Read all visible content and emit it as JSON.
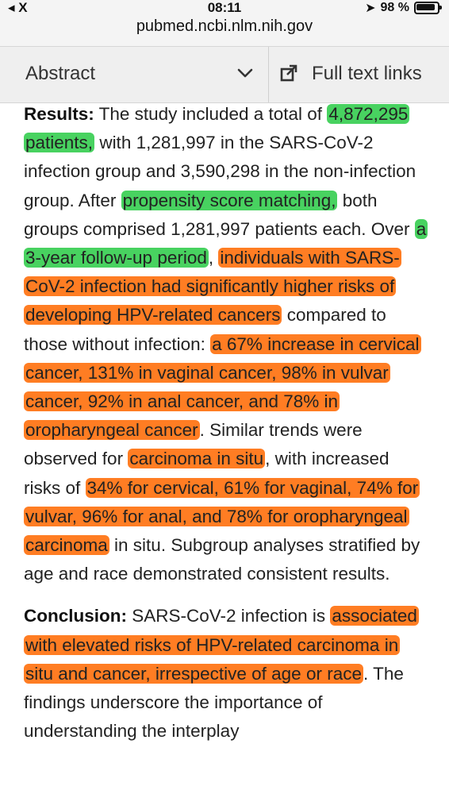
{
  "status_bar": {
    "carrier": "◂ X",
    "time": "08:11",
    "url": "pubmed.ncbi.nlm.nih.gov",
    "battery": "98 %"
  },
  "toolbar": {
    "abstract_label": "Abstract",
    "full_text_label": "Full text links"
  },
  "results": {
    "label": "Results:",
    "segments": [
      " The study included a total of ",
      "4,872,295 patients,",
      " with 1,281,997 in the SARS-CoV-2 infection group and 3,590,298 in the non-infection group. After ",
      "propensity score matching,",
      " both groups comprised 1,281,997 patients each. Over ",
      "a 3-year follow-up period",
      ", ",
      "individuals with SARS-CoV-2 infection had significantly higher risks of developing HPV-related cancers",
      " compared to those without infection: ",
      "a 67% increase in cervical cancer, 131% in vaginal cancer, 98% in vulvar cancer, 92% in anal cancer, and 78% in oropharyngeal cancer",
      ". Similar trends were observed for ",
      "carcinoma in situ",
      ", with increased risks of ",
      "34% for cervical, 61% for vaginal, 74% for vulvar, 96% for anal, and 78% for oropharyngeal carcinoma",
      " in situ. Subgroup analyses stratified by age and race demonstrated consistent results."
    ]
  },
  "conclusion": {
    "label": "Conclusion:",
    "segments": [
      " SARS-CoV-2 infection is ",
      "associated with elevated risks of HPV-related carcinoma in situ and cancer, irrespective of age or race",
      ". The findings underscore the importance of understanding the interplay"
    ]
  },
  "highlight_colors": {
    "green": "#48d260",
    "orange": "#ff7d23"
  }
}
